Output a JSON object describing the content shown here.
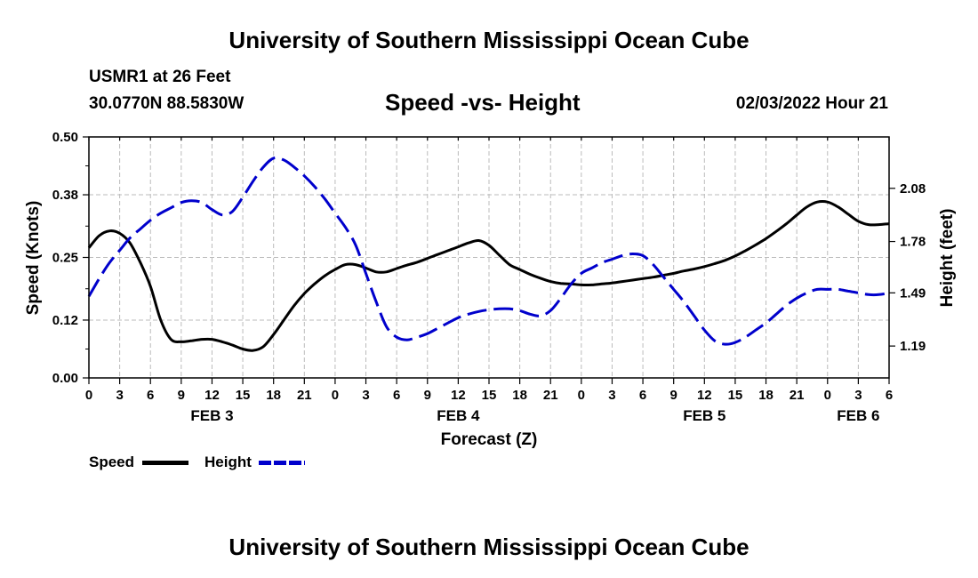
{
  "header": {
    "title": "University of Southern Mississippi Ocean Cube",
    "station": "USMR1 at 26 Feet",
    "coords": "30.0770N  88.5830W",
    "datetime": "02/03/2022 Hour 21"
  },
  "footer": {
    "title": "University of Southern Mississippi Ocean Cube"
  },
  "legend": {
    "speed_label": "Speed",
    "height_label": "Height"
  },
  "colors": {
    "speed": "#000000",
    "height": "#0000cc",
    "grid": "#bbbbbb"
  },
  "chart_data": {
    "type": "line",
    "title": "Speed -vs- Height",
    "xlabel": "Forecast (Z)",
    "ylabel_left": "Speed (Knots)",
    "ylabel_right": "Height (feet)",
    "xlim": [
      0,
      78
    ],
    "x_ticks": [
      0,
      3,
      6,
      9,
      12,
      15,
      18,
      21,
      24,
      27,
      30,
      33,
      36,
      39,
      42,
      45,
      48,
      51,
      54,
      57,
      60,
      63,
      66,
      69,
      72,
      75,
      78
    ],
    "x_tick_labels": [
      "0",
      "3",
      "6",
      "9",
      "12",
      "15",
      "18",
      "21",
      "0",
      "3",
      "6",
      "9",
      "12",
      "15",
      "18",
      "21",
      "0",
      "3",
      "6",
      "9",
      "12",
      "15",
      "18",
      "21",
      "0",
      "3",
      "6"
    ],
    "day_labels": [
      {
        "x": 12,
        "label": "FEB 3"
      },
      {
        "x": 36,
        "label": "FEB 4"
      },
      {
        "x": 60,
        "label": "FEB 5"
      },
      {
        "x": 75,
        "label": "FEB 6"
      }
    ],
    "left_axis": {
      "ylim": [
        0.0,
        0.5
      ],
      "ticks": [
        0.0,
        0.12,
        0.25,
        0.38,
        0.5
      ],
      "tick_labels": [
        "0.00",
        "0.12",
        "0.25",
        "0.38",
        "0.50"
      ]
    },
    "right_axis": {
      "ylim": [
        1.01,
        2.37
      ],
      "ticks": [
        1.19,
        1.49,
        1.78,
        2.08
      ],
      "tick_labels": [
        "1.19",
        "1.49",
        "1.78",
        "2.08"
      ]
    },
    "grid": true,
    "series": [
      {
        "name": "Speed",
        "axis": "left",
        "style": "solid",
        "x": [
          0,
          1,
          2,
          3,
          4,
          5,
          6,
          7,
          8,
          9,
          10,
          11,
          12,
          13,
          14,
          15,
          16,
          17,
          18,
          19,
          20,
          21,
          22,
          23,
          24,
          25,
          26,
          27,
          28,
          29,
          30,
          31,
          32,
          33,
          34,
          35,
          36,
          37,
          38,
          39,
          40,
          41,
          42,
          43,
          44,
          45,
          46,
          47,
          48,
          49,
          50,
          51,
          52,
          53,
          54,
          55,
          56,
          57,
          58,
          59,
          60,
          61,
          62,
          63,
          64,
          65,
          66,
          67,
          68,
          69,
          70,
          71,
          72,
          73,
          74,
          75,
          76,
          77,
          78
        ],
        "values": [
          0.27,
          0.295,
          0.305,
          0.3,
          0.28,
          0.24,
          0.19,
          0.12,
          0.08,
          0.075,
          0.077,
          0.08,
          0.08,
          0.075,
          0.068,
          0.06,
          0.057,
          0.065,
          0.09,
          0.12,
          0.15,
          0.175,
          0.195,
          0.212,
          0.225,
          0.235,
          0.235,
          0.228,
          0.22,
          0.22,
          0.227,
          0.234,
          0.24,
          0.248,
          0.256,
          0.264,
          0.272,
          0.28,
          0.285,
          0.275,
          0.255,
          0.235,
          0.225,
          0.215,
          0.207,
          0.2,
          0.196,
          0.195,
          0.193,
          0.193,
          0.195,
          0.197,
          0.2,
          0.203,
          0.206,
          0.209,
          0.213,
          0.217,
          0.222,
          0.226,
          0.231,
          0.237,
          0.244,
          0.253,
          0.264,
          0.276,
          0.289,
          0.304,
          0.32,
          0.338,
          0.355,
          0.365,
          0.365,
          0.355,
          0.34,
          0.325,
          0.318,
          0.318,
          0.32
        ]
      },
      {
        "name": "Height",
        "axis": "right",
        "style": "dashed",
        "x": [
          0,
          1,
          2,
          3,
          4,
          5,
          6,
          7,
          8,
          9,
          10,
          11,
          12,
          13,
          14,
          15,
          16,
          17,
          18,
          19,
          20,
          21,
          22,
          23,
          24,
          25,
          26,
          27,
          28,
          29,
          30,
          31,
          32,
          33,
          34,
          35,
          36,
          37,
          38,
          39,
          40,
          41,
          42,
          43,
          44,
          45,
          46,
          47,
          48,
          49,
          50,
          51,
          52,
          53,
          54,
          55,
          56,
          57,
          58,
          59,
          60,
          61,
          62,
          63,
          64,
          65,
          66,
          67,
          68,
          69,
          70,
          71,
          72,
          73,
          74,
          75,
          76,
          77,
          78
        ],
        "values": [
          1.47,
          1.57,
          1.66,
          1.73,
          1.8,
          1.85,
          1.9,
          1.94,
          1.97,
          2.0,
          2.01,
          2.0,
          1.96,
          1.93,
          1.95,
          2.03,
          2.12,
          2.2,
          2.25,
          2.24,
          2.2,
          2.15,
          2.09,
          2.02,
          1.94,
          1.86,
          1.76,
          1.6,
          1.44,
          1.3,
          1.24,
          1.225,
          1.24,
          1.26,
          1.29,
          1.32,
          1.35,
          1.37,
          1.385,
          1.395,
          1.4,
          1.4,
          1.39,
          1.37,
          1.36,
          1.39,
          1.46,
          1.54,
          1.6,
          1.63,
          1.66,
          1.68,
          1.7,
          1.71,
          1.7,
          1.65,
          1.58,
          1.51,
          1.44,
          1.36,
          1.28,
          1.22,
          1.2,
          1.21,
          1.24,
          1.28,
          1.32,
          1.37,
          1.42,
          1.46,
          1.49,
          1.51,
          1.51,
          1.51,
          1.5,
          1.49,
          1.48,
          1.48,
          1.49
        ]
      }
    ]
  }
}
